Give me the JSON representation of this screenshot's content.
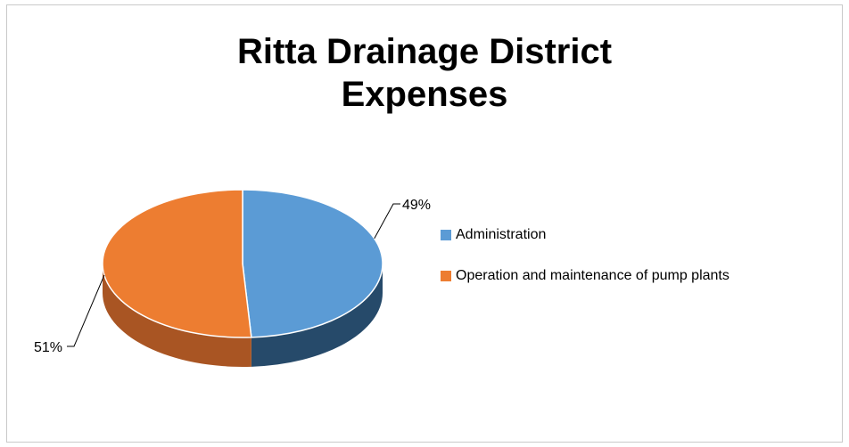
{
  "chart_data": {
    "type": "pie",
    "title": "Ritta Drainage District\nExpenses",
    "categories": [
      "Administration",
      "Operation and maintenance of pump plants"
    ],
    "values": [
      49,
      51
    ],
    "data_labels": [
      "49%",
      "51%"
    ],
    "colors": [
      "#5b9bd5",
      "#ed7d31"
    ],
    "side_colors": [
      "#264a6a",
      "#a95523"
    ],
    "legend_position": "right",
    "three_d": true
  }
}
